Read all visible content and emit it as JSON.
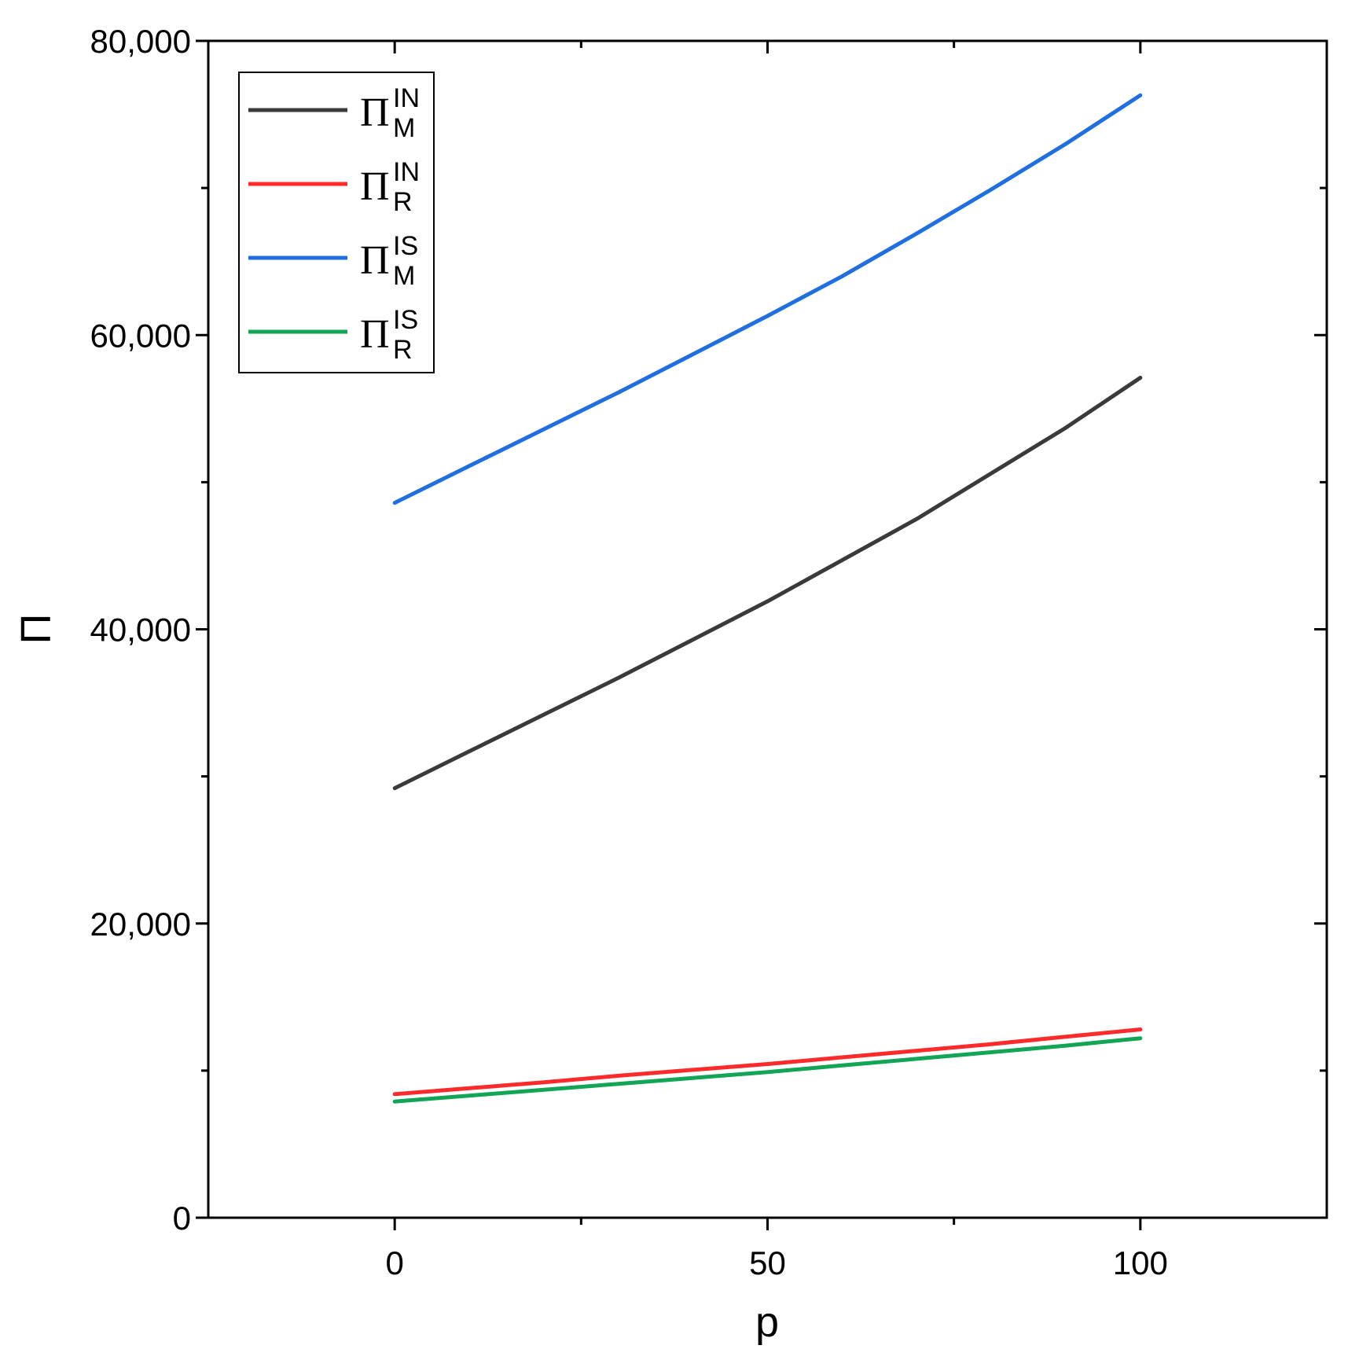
{
  "chart_data": {
    "type": "line",
    "xlabel": "p",
    "ylabel": "Π",
    "xlim": [
      -25,
      125
    ],
    "ylim": [
      0,
      80000
    ],
    "x_ticks": [
      0,
      50,
      100
    ],
    "x_tick_labels": [
      "0",
      "50",
      "100"
    ],
    "y_ticks": [
      0,
      20000,
      40000,
      60000,
      80000
    ],
    "y_tick_labels": [
      "0",
      "20,000",
      "40,000",
      "60,000",
      "80,000"
    ],
    "grid": false,
    "legend_position": "top-left",
    "x": [
      0,
      10,
      20,
      30,
      40,
      50,
      60,
      70,
      80,
      90,
      100
    ],
    "series": [
      {
        "name": "Π_M^IN",
        "legend": {
          "base": "Π",
          "sup": "IN",
          "sub": "M"
        },
        "color": "#3a3a3a",
        "values": [
          29200,
          31700,
          34200,
          36700,
          39300,
          41900,
          44700,
          47500,
          50600,
          53700,
          57100
        ]
      },
      {
        "name": "Π_R^IN",
        "legend": {
          "base": "Π",
          "sup": "IN",
          "sub": "R"
        },
        "color": "#ff2a2a",
        "values": [
          8400,
          8800,
          9200,
          9650,
          10050,
          10450,
          10900,
          11350,
          11800,
          12300,
          12800
        ]
      },
      {
        "name": "Π_M^IS",
        "legend": {
          "base": "Π",
          "sup": "IS",
          "sub": "M"
        },
        "color": "#1f6fe0",
        "values": [
          48600,
          51100,
          53600,
          56100,
          58700,
          61300,
          64000,
          66900,
          69900,
          73000,
          76300
        ]
      },
      {
        "name": "Π_R^IS",
        "legend": {
          "base": "Π",
          "sup": "IS",
          "sub": "R"
        },
        "color": "#12a555",
        "values": [
          7900,
          8300,
          8700,
          9100,
          9500,
          9900,
          10350,
          10800,
          11250,
          11700,
          12200
        ]
      }
    ]
  }
}
